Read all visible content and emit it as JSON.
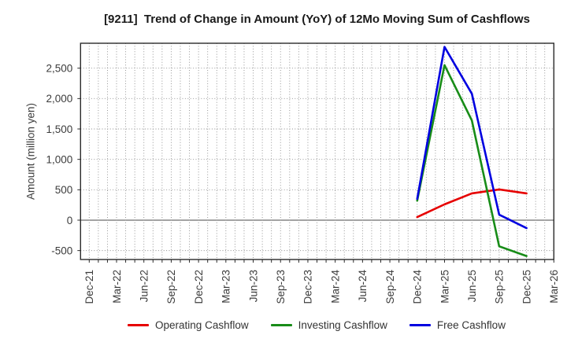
{
  "title": "[9211]  Trend of Change in Amount (YoY) of 12Mo Moving Sum of Cashflows",
  "chart_data": {
    "type": "line",
    "title": "[9211]  Trend of Change in Amount (YoY) of 12Mo Moving Sum of Cashflows",
    "xlabel": "",
    "ylabel": "Amount (million yen)",
    "x_tick_labels": [
      "Dec-21",
      "Mar-22",
      "Jun-22",
      "Sep-22",
      "Dec-22",
      "Mar-23",
      "Jun-23",
      "Sep-23",
      "Dec-23",
      "Mar-24",
      "Jun-24",
      "Sep-24",
      "Dec-24",
      "Mar-25",
      "Jun-25",
      "Sep-25",
      "Dec-25",
      "Mar-26"
    ],
    "y_ticks": [
      -500,
      0,
      500,
      1000,
      1500,
      2000,
      2500
    ],
    "ylim": [
      -647,
      2910
    ],
    "xlim": [
      "Nov-21",
      "Mar-26"
    ],
    "grid": "dotted gray, vertical every month, horizontal every 500; zero line solid",
    "legend_position": "bottom-center",
    "categories": [
      "Dec-24",
      "Mar-25",
      "Jun-25",
      "Sep-25",
      "Dec-25"
    ],
    "series": [
      {
        "name": "Operating Cashflow",
        "color": "#e60000",
        "values": [
          50,
          260,
          440,
          505,
          440
        ]
      },
      {
        "name": "Investing Cashflow",
        "color": "#188c18",
        "values": [
          320,
          2550,
          1640,
          -430,
          -590
        ]
      },
      {
        "name": "Free Cashflow",
        "color": "#0000e0",
        "values": [
          350,
          2850,
          2080,
          90,
          -130
        ]
      }
    ],
    "colors": {
      "border": "#2b2b2b",
      "grid": "#8c8c8c",
      "zero_line": "#6e6e6e",
      "tick_text": "#3c3c3c"
    }
  }
}
